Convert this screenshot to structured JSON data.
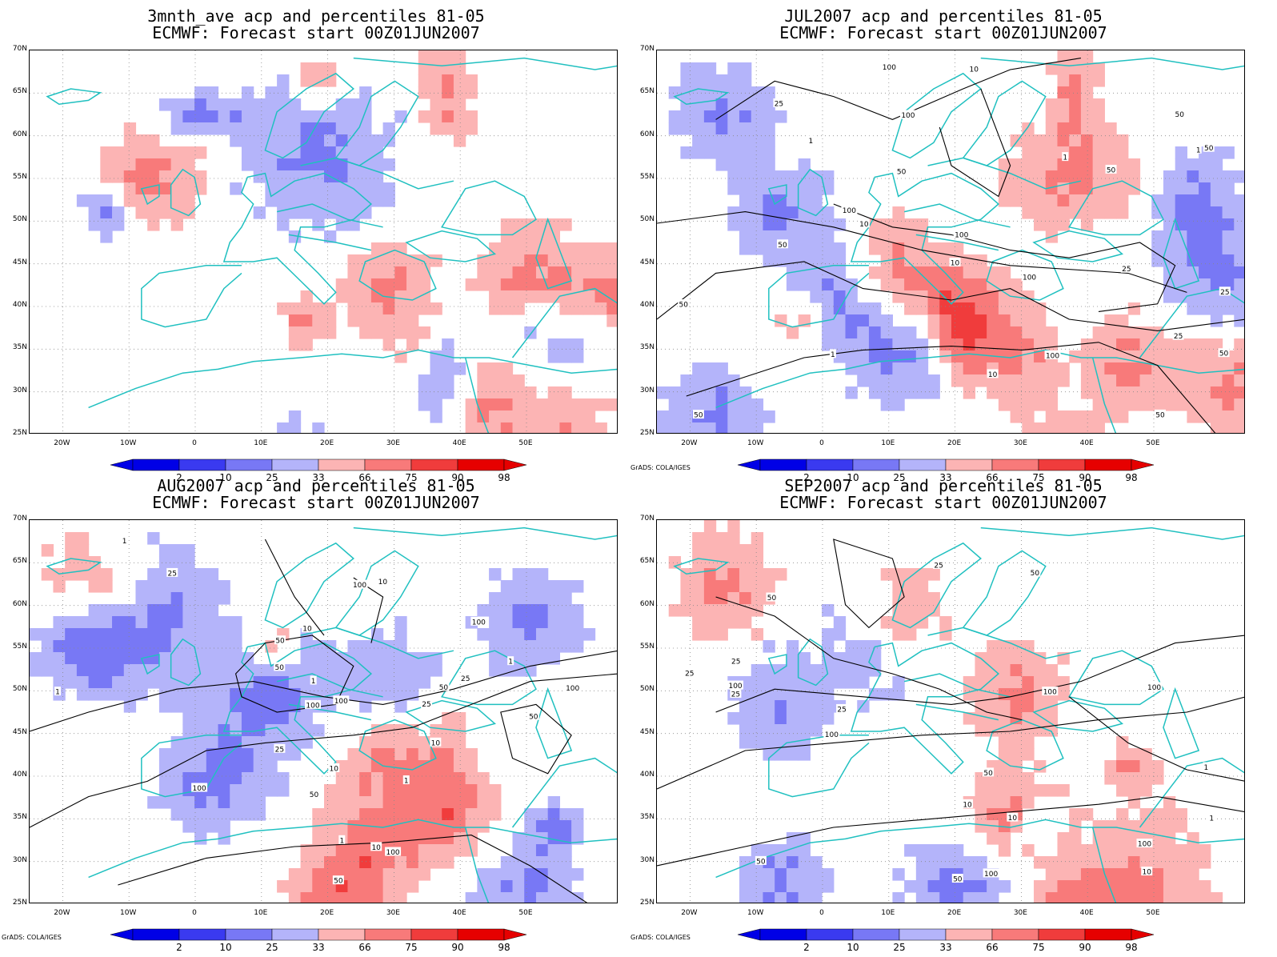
{
  "panels": [
    {
      "title1": "3mnth_ave acp and percentiles 81-05",
      "title2": "ECMWF: Forecast start 00Z01JUN2007",
      "credit": ""
    },
    {
      "title1": "JUL2007 acp and percentiles 81-05",
      "title2": "ECMWF: Forecast start 00Z01JUN2007",
      "credit": "GrADS: COLA/IGES"
    },
    {
      "title1": "AUG2007 acp and percentiles 81-05",
      "title2": "ECMWF: Forecast start 00Z01JUN2007",
      "credit": "GrADS: COLA/IGES"
    },
    {
      "title1": "SEP2007 acp and percentiles 81-05",
      "title2": "ECMWF: Forecast start 00Z01JUN2007",
      "credit": "GrADS: COLA/IGES"
    }
  ],
  "lat_labels": [
    "70N",
    "65N",
    "60N",
    "55N",
    "50N",
    "45N",
    "40N",
    "35N",
    "30N",
    "25N"
  ],
  "lon_labels": [
    "20W",
    "10W",
    "0",
    "10E",
    "20E",
    "30E",
    "40E",
    "50E"
  ],
  "colorbar": {
    "labels": [
      "2",
      "10",
      "25",
      "33",
      "66",
      "75",
      "90",
      "98"
    ],
    "colors": [
      "#0000e6",
      "#3a3af0",
      "#7878f5",
      "#b4b4fa",
      "#ffffff",
      "#fcb4b4",
      "#f87a7a",
      "#f03c3c",
      "#e60000"
    ]
  },
  "colors": {
    "coastline": "#20c0c0",
    "contour": "#000000",
    "grid": "#888888"
  },
  "contour_labels": [
    [],
    [
      "100",
      "50",
      "50",
      "50",
      "50",
      "100",
      "50",
      "50",
      "100",
      "100",
      "100",
      "50",
      "25",
      "10",
      "25",
      "1",
      "1",
      "10",
      "50",
      "25",
      "10",
      "100",
      "50",
      "10",
      "25",
      "1",
      "1"
    ],
    [
      "50",
      "100",
      "100",
      "100",
      "100",
      "100",
      "100",
      "50",
      "50",
      "50",
      "100",
      "25",
      "25",
      "50",
      "10",
      "25",
      "10",
      "10",
      "10",
      "50",
      "25",
      "1",
      "1",
      "1",
      "10",
      "1",
      "1",
      "1"
    ],
    [
      "100",
      "100",
      "100",
      "100",
      "100",
      "100",
      "50",
      "50",
      "50",
      "25",
      "10",
      "1",
      "50",
      "25",
      "25",
      "50",
      "25",
      "10",
      "25",
      "10",
      "1"
    ]
  ],
  "maps": [
    {
      "blue": [
        [
          5,
          14,
          1,
          2
        ],
        [
          13,
          6,
          1,
          1
        ],
        [
          40,
          15,
          2,
          3
        ],
        [
          45,
          40,
          2,
          3
        ],
        [
          40,
          16,
          1,
          1
        ],
        [
          48,
          35,
          1,
          1
        ],
        [
          44,
          33,
          1,
          2
        ],
        [
          35,
          23,
          2,
          2
        ],
        [
          44,
          36,
          2,
          2
        ],
        [
          46,
          43,
          1,
          1
        ],
        [
          8,
          24,
          3,
          3
        ],
        [
          25,
          45,
          2,
          2
        ],
        [
          28,
          35,
          2,
          1
        ]
      ],
      "red": [
        [
          3,
          35,
          2,
          1
        ],
        [
          10,
          10,
          2,
          2
        ],
        [
          20,
          30,
          2,
          2
        ],
        [
          18,
          42,
          2,
          2
        ],
        [
          20,
          49,
          2,
          2
        ],
        [
          30,
          38,
          2,
          2
        ],
        [
          28,
          45,
          2,
          2
        ],
        [
          43,
          50,
          2,
          1
        ],
        [
          35,
          51,
          1,
          2
        ],
        [
          36,
          45,
          2,
          1
        ],
        [
          2,
          24,
          1,
          1
        ],
        [
          48,
          32,
          2,
          2
        ],
        [
          22,
          23,
          1,
          1
        ]
      ]
    },
    {
      "blue": [
        [
          5,
          5,
          2,
          2
        ],
        [
          13,
          10,
          2,
          2
        ],
        [
          20,
          15,
          2,
          2
        ],
        [
          12,
          45,
          2,
          2
        ],
        [
          18,
          47,
          2,
          2
        ],
        [
          30,
          4,
          2,
          2
        ],
        [
          35,
          41,
          2,
          1
        ],
        [
          38,
          50,
          3,
          3
        ],
        [
          45,
          20,
          3,
          3
        ],
        [
          46,
          34,
          2,
          2
        ],
        [
          48,
          42,
          1,
          1
        ],
        [
          42,
          44,
          1,
          1
        ],
        [
          25,
          20,
          2,
          2
        ]
      ],
      "red": [
        [
          10,
          35,
          2,
          3
        ],
        [
          3,
          35,
          2,
          1
        ],
        [
          18,
          20,
          2,
          2
        ],
        [
          21,
          26,
          2,
          2
        ],
        [
          25,
          30,
          2,
          2
        ],
        [
          34,
          34,
          2,
          2
        ],
        [
          28,
          48,
          2,
          2
        ],
        [
          42,
          50,
          3,
          3
        ],
        [
          48,
          35,
          1,
          1
        ],
        [
          44,
          40,
          2,
          1
        ],
        [
          36,
          45,
          1,
          1
        ],
        [
          22,
          12,
          1,
          1
        ],
        [
          23,
          25,
          2,
          1
        ],
        [
          26,
          40,
          2,
          2
        ]
      ]
    },
    {
      "blue": [
        [
          8,
          10,
          3,
          3
        ],
        [
          15,
          20,
          3,
          3
        ],
        [
          22,
          15,
          2,
          2
        ],
        [
          10,
          4,
          2,
          2
        ],
        [
          8,
          42,
          2,
          2
        ],
        [
          13,
          30,
          2,
          2
        ],
        [
          30,
          42,
          2,
          2
        ],
        [
          36,
          35,
          2,
          2
        ],
        [
          45,
          8,
          2,
          2
        ],
        [
          40,
          45,
          3,
          3
        ],
        [
          25,
          44,
          1,
          1
        ]
      ],
      "red": [
        [
          5,
          5,
          2,
          2
        ],
        [
          20,
          30,
          3,
          3
        ],
        [
          24,
          35,
          2,
          2
        ],
        [
          28,
          28,
          2,
          2
        ],
        [
          32,
          25,
          2,
          2
        ],
        [
          38,
          38,
          2,
          2
        ],
        [
          46,
          43,
          2,
          2
        ],
        [
          10,
          20,
          1,
          1
        ],
        [
          44,
          40,
          2,
          1
        ]
      ]
    },
    {
      "blue": [
        [
          15,
          10,
          2,
          2
        ],
        [
          30,
          10,
          2,
          2
        ],
        [
          30,
          25,
          2,
          2
        ],
        [
          38,
          40,
          2,
          2
        ],
        [
          44,
          45,
          2,
          2
        ],
        [
          48,
          32,
          2,
          2
        ],
        [
          10,
          18,
          2,
          2
        ],
        [
          25,
          32,
          1,
          1
        ],
        [
          36,
          30,
          1,
          1
        ],
        [
          45,
          10,
          2,
          2
        ]
      ],
      "red": [
        [
          5,
          5,
          2,
          2
        ],
        [
          8,
          20,
          2,
          2
        ],
        [
          14,
          30,
          2,
          2
        ],
        [
          24,
          30,
          2,
          2
        ],
        [
          30,
          40,
          3,
          3
        ],
        [
          34,
          35,
          2,
          2
        ],
        [
          36,
          42,
          2,
          2
        ],
        [
          42,
          20,
          2,
          2
        ],
        [
          48,
          8,
          2,
          2
        ],
        [
          45,
          30,
          1,
          1
        ],
        [
          20,
          40,
          1,
          1
        ]
      ]
    }
  ]
}
